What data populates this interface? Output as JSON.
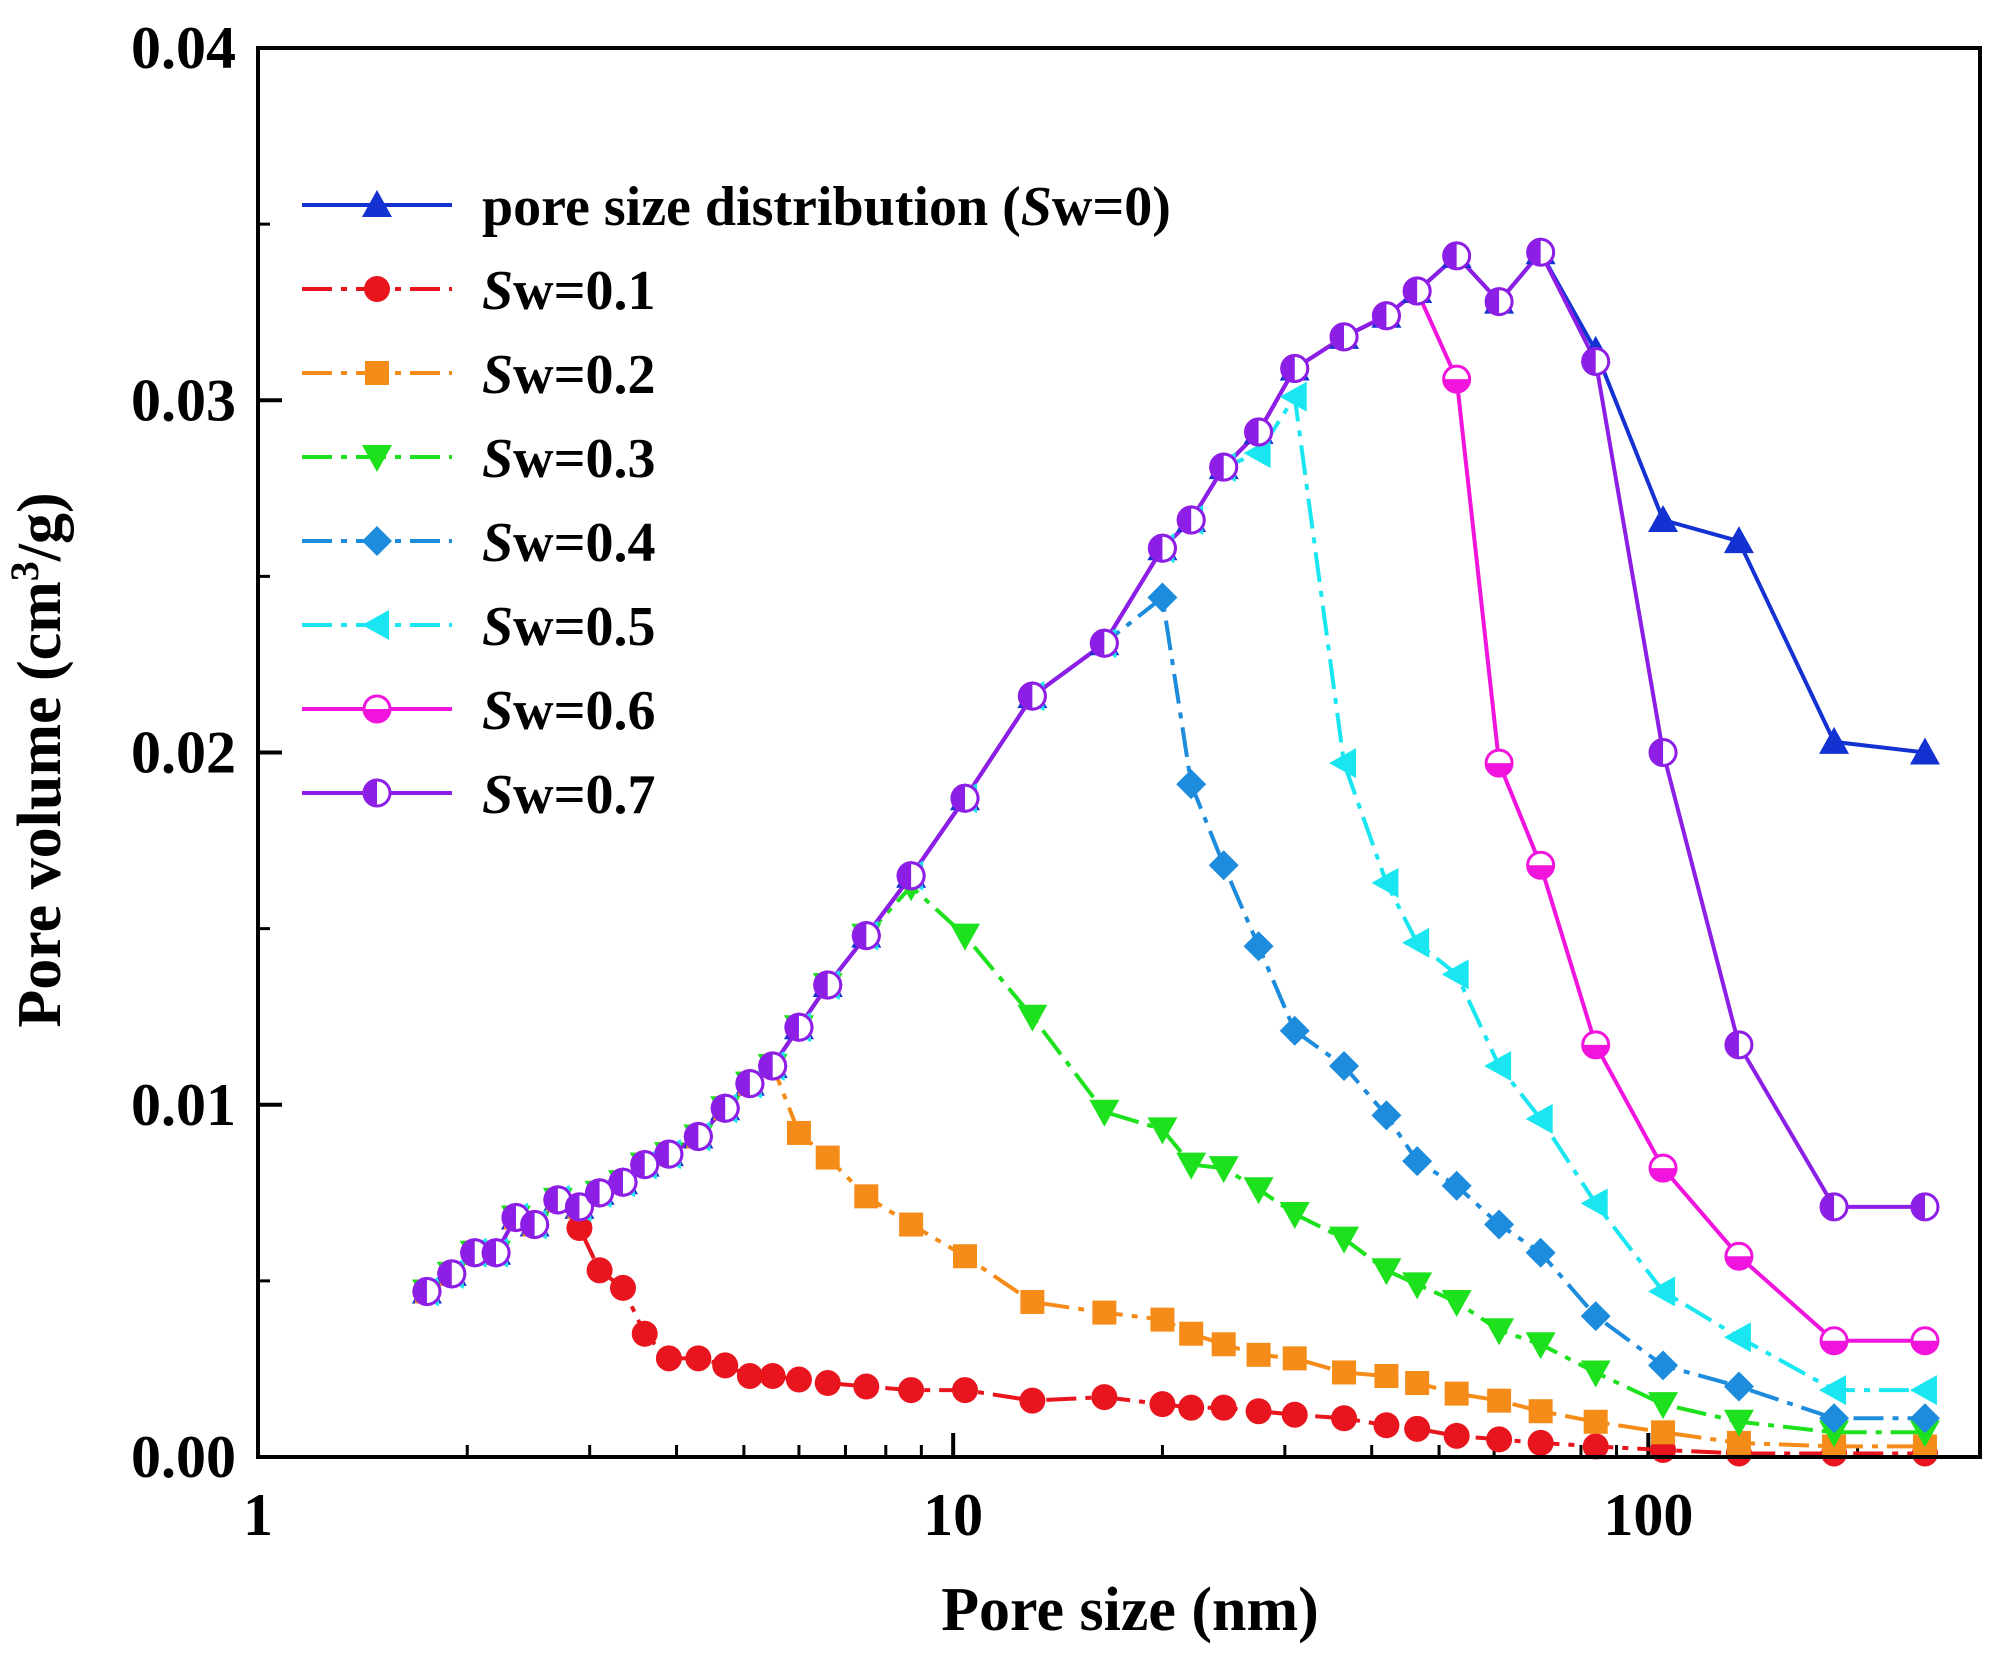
{
  "chart_data": {
    "type": "line",
    "title": "",
    "xlabel": "Pore size (nm)",
    "ylabel_main": "Pore volume (cm",
    "ylabel_sup": "3",
    "ylabel_end": "/g)",
    "xscale": "log",
    "xlim": [
      1,
      300
    ],
    "ylim": [
      0,
      0.04
    ],
    "x_ticks": [
      {
        "value": 1,
        "label": "1"
      },
      {
        "value": 10,
        "label": "10"
      },
      {
        "value": 100,
        "label": "100"
      }
    ],
    "y_ticks": [
      {
        "value": 0,
        "label": "0.00"
      },
      {
        "value": 0.01,
        "label": "0.01"
      },
      {
        "value": 0.02,
        "label": "0.02"
      },
      {
        "value": 0.03,
        "label": "0.03"
      },
      {
        "value": 0.04,
        "label": "0.04"
      }
    ],
    "legend_position": "top-left",
    "x": [
      1.75,
      1.9,
      2.05,
      2.2,
      2.35,
      2.5,
      2.7,
      2.9,
      3.1,
      3.35,
      3.6,
      3.9,
      4.3,
      4.7,
      5.1,
      5.5,
      6.0,
      6.6,
      7.5,
      8.7,
      10.4,
      13.0,
      16.5,
      20.0,
      22.0,
      24.5,
      27.5,
      31.0,
      36.5,
      42.0,
      46.5,
      53.0,
      61.0,
      70.0,
      84.0,
      105.0,
      135.0,
      185.0,
      250.0
    ],
    "series": [
      {
        "name": "pore size distribution (",
        "name_italic": "S",
        "name_end": "w=0)",
        "color": "#1432d2",
        "marker": "triangle-up",
        "dash": "solid",
        "values": [
          0.0047,
          0.0052,
          0.0058,
          0.0058,
          0.0068,
          0.0066,
          0.0073,
          0.0071,
          0.0075,
          0.0078,
          0.0083,
          0.0086,
          0.0091,
          0.0099,
          0.0106,
          0.0111,
          0.0122,
          0.0134,
          0.0148,
          0.0165,
          0.0187,
          0.0216,
          0.0231,
          0.0258,
          0.0266,
          0.0281,
          0.0291,
          0.0309,
          0.0318,
          0.0324,
          0.0331,
          0.0341,
          0.0328,
          0.0342,
          0.0314,
          0.0266,
          0.026,
          0.0203,
          0.02
        ]
      },
      {
        "name": "",
        "name_italic": "S",
        "name_end": "w=0.1",
        "color": "#e8141e",
        "marker": "circle",
        "dash": "dashdot",
        "values": [
          0.0047,
          0.0052,
          0.0058,
          0.0058,
          0.0068,
          0.0066,
          0.0073,
          0.0065,
          0.0053,
          0.0048,
          0.0035,
          0.0028,
          0.0028,
          0.0026,
          0.0023,
          0.0023,
          0.0022,
          0.0021,
          0.002,
          0.0019,
          0.0019,
          0.0016,
          0.0017,
          0.0015,
          0.0014,
          0.0014,
          0.0013,
          0.0012,
          0.0011,
          0.0009,
          0.0008,
          0.0006,
          0.0005,
          0.0004,
          0.0003,
          0.0002,
          0.0001,
          0.0001,
          0.0001
        ]
      },
      {
        "name": "",
        "name_italic": "S",
        "name_end": "w=0.2",
        "color": "#f58c19",
        "marker": "square",
        "dash": "dashdot",
        "values": [
          0.0047,
          0.0052,
          0.0058,
          0.0058,
          0.0068,
          0.0066,
          0.0073,
          0.0071,
          0.0075,
          0.0078,
          0.0083,
          0.0086,
          0.0091,
          0.0099,
          0.0106,
          0.0111,
          0.0092,
          0.0085,
          0.0074,
          0.0066,
          0.0057,
          0.0044,
          0.0041,
          0.0039,
          0.0035,
          0.0032,
          0.0029,
          0.0028,
          0.0024,
          0.0023,
          0.0021,
          0.0018,
          0.0016,
          0.0013,
          0.001,
          0.0007,
          0.0004,
          0.0003,
          0.0003
        ]
      },
      {
        "name": "",
        "name_italic": "S",
        "name_end": "w=0.3",
        "color": "#1ee11e",
        "marker": "triangle-down",
        "dash": "dashdot",
        "values": [
          0.0047,
          0.0052,
          0.0058,
          0.0058,
          0.0068,
          0.0066,
          0.0073,
          0.0071,
          0.0075,
          0.0078,
          0.0083,
          0.0086,
          0.0091,
          0.0099,
          0.0106,
          0.0111,
          0.0122,
          0.0134,
          0.0148,
          0.0162,
          0.0148,
          0.0125,
          0.0098,
          0.0093,
          0.0083,
          0.0082,
          0.0076,
          0.0069,
          0.0062,
          0.0053,
          0.0049,
          0.0044,
          0.0036,
          0.0032,
          0.0024,
          0.0015,
          0.001,
          0.0007,
          0.0007
        ]
      },
      {
        "name": "",
        "name_italic": "S",
        "name_end": "w=0.4",
        "color": "#1e8cdc",
        "marker": "diamond",
        "dash": "dashdot",
        "values": [
          0.0047,
          0.0052,
          0.0058,
          0.0058,
          0.0068,
          0.0066,
          0.0073,
          0.0071,
          0.0075,
          0.0078,
          0.0083,
          0.0086,
          0.0091,
          0.0099,
          0.0106,
          0.0111,
          0.0122,
          0.0134,
          0.0148,
          0.0165,
          0.0187,
          0.0216,
          0.0231,
          0.0244,
          0.0191,
          0.0168,
          0.0145,
          0.0121,
          0.0111,
          0.0097,
          0.0084,
          0.0077,
          0.0066,
          0.0058,
          0.004,
          0.0026,
          0.002,
          0.0011,
          0.0011
        ]
      },
      {
        "name": "",
        "name_italic": "S",
        "name_end": "w=0.5",
        "color": "#19e6f0",
        "marker": "triangle-left",
        "dash": "dashdot",
        "values": [
          0.0047,
          0.0052,
          0.0058,
          0.0058,
          0.0068,
          0.0066,
          0.0073,
          0.0071,
          0.0075,
          0.0078,
          0.0083,
          0.0086,
          0.0091,
          0.0099,
          0.0106,
          0.0111,
          0.0122,
          0.0134,
          0.0148,
          0.0165,
          0.0187,
          0.0216,
          0.0231,
          0.0258,
          0.0266,
          0.0281,
          0.0285,
          0.0301,
          0.0197,
          0.0163,
          0.0146,
          0.0137,
          0.0111,
          0.0096,
          0.0072,
          0.0047,
          0.0034,
          0.0019,
          0.0019
        ]
      },
      {
        "name": "",
        "name_italic": "S",
        "name_end": "w=0.6",
        "color": "#f014dc",
        "marker": "circle-half-bottom",
        "dash": "solid",
        "values": [
          0.0047,
          0.0052,
          0.0058,
          0.0058,
          0.0068,
          0.0066,
          0.0073,
          0.0071,
          0.0075,
          0.0078,
          0.0083,
          0.0086,
          0.0091,
          0.0099,
          0.0106,
          0.0111,
          0.0122,
          0.0134,
          0.0148,
          0.0165,
          0.0187,
          0.0216,
          0.0231,
          0.0258,
          0.0266,
          0.0281,
          0.0291,
          0.0309,
          0.0318,
          0.0324,
          0.0331,
          0.0306,
          0.0197,
          0.0168,
          0.0117,
          0.0082,
          0.0057,
          0.0033,
          0.0033
        ]
      },
      {
        "name": "",
        "name_italic": "S",
        "name_end": "w=0.7",
        "color": "#8c1ee6",
        "marker": "circle-half-left",
        "dash": "solid",
        "values": [
          0.0047,
          0.0052,
          0.0058,
          0.0058,
          0.0068,
          0.0066,
          0.0073,
          0.0071,
          0.0075,
          0.0078,
          0.0083,
          0.0086,
          0.0091,
          0.0099,
          0.0106,
          0.0111,
          0.0122,
          0.0134,
          0.0148,
          0.0165,
          0.0187,
          0.0216,
          0.0231,
          0.0258,
          0.0266,
          0.0281,
          0.0291,
          0.0309,
          0.0318,
          0.0324,
          0.0331,
          0.0341,
          0.0328,
          0.0342,
          0.0311,
          0.02,
          0.0117,
          0.0071,
          0.0071
        ]
      }
    ]
  }
}
